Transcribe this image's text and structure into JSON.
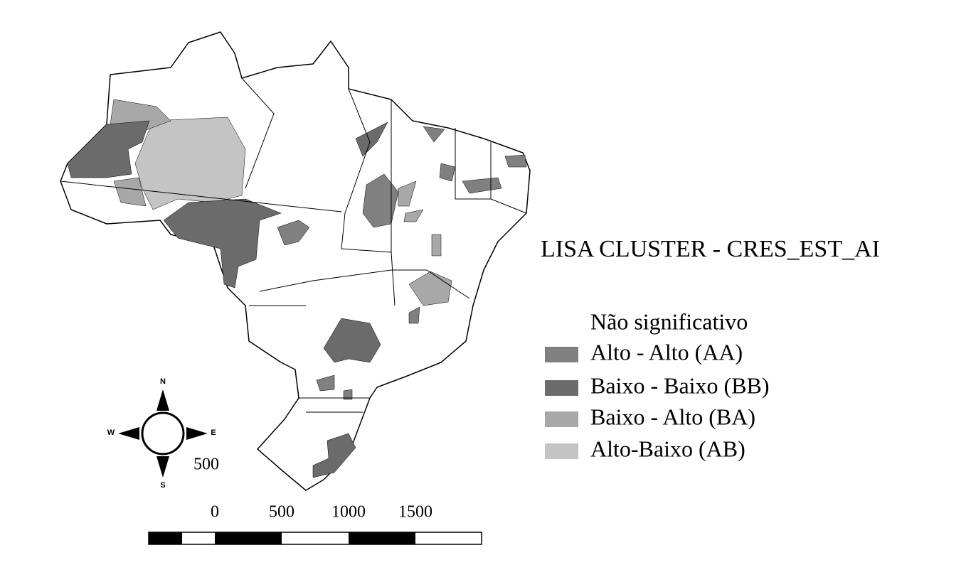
{
  "title": "LISA CLUSTER - CRES_EST_AI",
  "legend": [
    {
      "label": "Não significativo",
      "color": "#ffffff"
    },
    {
      "label": "Alto - Alto (AA)",
      "color": "#808080"
    },
    {
      "label": "Baixo - Baixo (BB)",
      "color": "#6b6b6b"
    },
    {
      "label": "Baixo - Alto (BA)",
      "color": "#a8a8a8"
    },
    {
      "label": "Alto-Baixo (AB)",
      "color": "#c4c4c4"
    }
  ],
  "compass": {
    "north": "N",
    "south": "S",
    "west": "W",
    "east": "E",
    "label": "500"
  },
  "scale_bar": {
    "ticks": [
      0,
      500,
      1000,
      1500
    ]
  }
}
